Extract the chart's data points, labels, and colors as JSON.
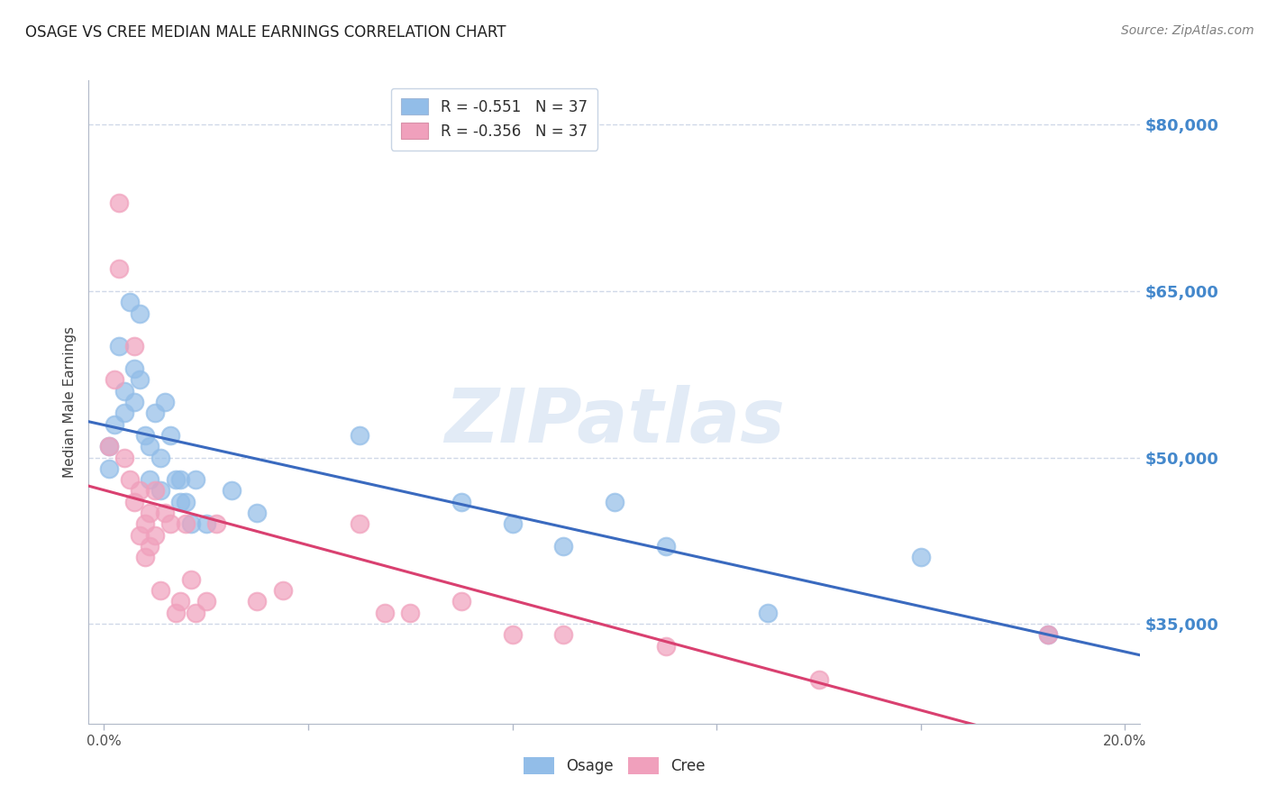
{
  "title": "OSAGE VS CREE MEDIAN MALE EARNINGS CORRELATION CHART",
  "source": "Source: ZipAtlas.com",
  "ylabel": "Median Male Earnings",
  "watermark_text": "ZIPatlas",
  "ytick_labels": [
    "$80,000",
    "$65,000",
    "$50,000",
    "$35,000"
  ],
  "ytick_values": [
    80000,
    65000,
    50000,
    35000
  ],
  "ymin": 26000,
  "ymax": 84000,
  "xmin": -0.003,
  "xmax": 0.203,
  "legend_blue_label": "Osage",
  "legend_pink_label": "Cree",
  "blue_color": "#92bde8",
  "pink_color": "#f0a0bc",
  "blue_line_color": "#3a6abf",
  "pink_line_color": "#d94070",
  "title_color": "#202020",
  "source_color": "#808080",
  "ytick_color": "#4488cc",
  "grid_color": "#d0d8e8",
  "background_color": "#ffffff",
  "osage_x": [
    0.001,
    0.001,
    0.002,
    0.003,
    0.004,
    0.004,
    0.005,
    0.006,
    0.006,
    0.007,
    0.007,
    0.008,
    0.009,
    0.009,
    0.01,
    0.011,
    0.011,
    0.012,
    0.013,
    0.014,
    0.015,
    0.015,
    0.016,
    0.017,
    0.018,
    0.02,
    0.025,
    0.03,
    0.05,
    0.07,
    0.08,
    0.09,
    0.1,
    0.11,
    0.13,
    0.16,
    0.185
  ],
  "osage_y": [
    51000,
    49000,
    53000,
    60000,
    56000,
    54000,
    64000,
    58000,
    55000,
    63000,
    57000,
    52000,
    51000,
    48000,
    54000,
    50000,
    47000,
    55000,
    52000,
    48000,
    48000,
    46000,
    46000,
    44000,
    48000,
    44000,
    47000,
    45000,
    52000,
    46000,
    44000,
    42000,
    46000,
    42000,
    36000,
    41000,
    34000
  ],
  "cree_x": [
    0.001,
    0.002,
    0.003,
    0.003,
    0.004,
    0.005,
    0.006,
    0.006,
    0.007,
    0.007,
    0.008,
    0.008,
    0.009,
    0.009,
    0.01,
    0.01,
    0.011,
    0.012,
    0.013,
    0.014,
    0.015,
    0.016,
    0.017,
    0.018,
    0.02,
    0.022,
    0.03,
    0.035,
    0.05,
    0.055,
    0.06,
    0.07,
    0.08,
    0.09,
    0.11,
    0.14,
    0.185
  ],
  "cree_y": [
    51000,
    57000,
    73000,
    67000,
    50000,
    48000,
    60000,
    46000,
    47000,
    43000,
    44000,
    41000,
    45000,
    42000,
    47000,
    43000,
    38000,
    45000,
    44000,
    36000,
    37000,
    44000,
    39000,
    36000,
    37000,
    44000,
    37000,
    38000,
    44000,
    36000,
    36000,
    37000,
    34000,
    34000,
    33000,
    30000,
    34000
  ]
}
